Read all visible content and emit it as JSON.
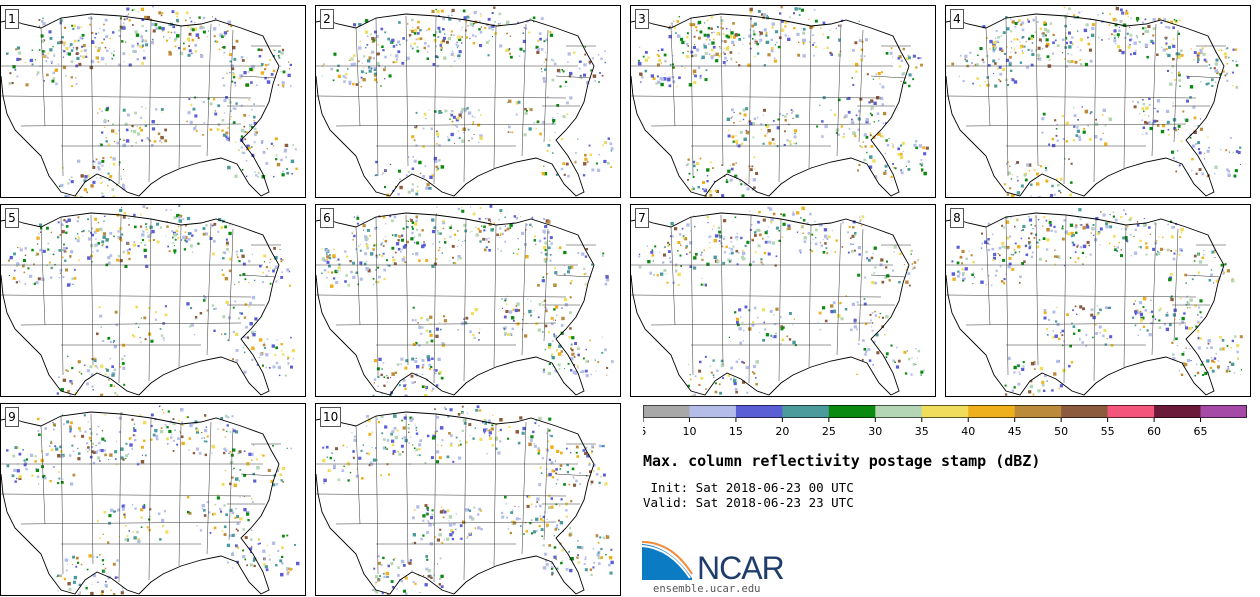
{
  "panels": [
    {
      "label": "1",
      "seed": 11
    },
    {
      "label": "2",
      "seed": 23
    },
    {
      "label": "3",
      "seed": 37
    },
    {
      "label": "4",
      "seed": 41
    },
    {
      "label": "5",
      "seed": 53
    },
    {
      "label": "6",
      "seed": 67
    },
    {
      "label": "7",
      "seed": 79
    },
    {
      "label": "8",
      "seed": 83
    },
    {
      "label": "9",
      "seed": 97
    },
    {
      "label": "10",
      "seed": 101
    }
  ],
  "colorbar": {
    "ticks": [
      "5",
      "10",
      "15",
      "20",
      "25",
      "30",
      "35",
      "40",
      "45",
      "50",
      "55",
      "60",
      "65"
    ],
    "colors": [
      "#a8a8a8",
      "#b4bde8",
      "#5a5fd6",
      "#4b9a9c",
      "#0b8a12",
      "#b5d6b4",
      "#f0dd5c",
      "#eeb01c",
      "#bb8a3a",
      "#8c5a3c",
      "#f3567a",
      "#6c1a3a",
      "#a64aa8"
    ]
  },
  "title": "Max. column reflectivity postage stamp (dBZ)",
  "init": " Init: Sat 2018-06-23 00 UTC",
  "valid": "Valid: Sat 2018-06-23 23 UTC",
  "logo": {
    "text": "NCAR",
    "url": "ensemble.ucar.edu"
  },
  "colors": {
    "border": "#000000",
    "state_lines": "#333333"
  }
}
